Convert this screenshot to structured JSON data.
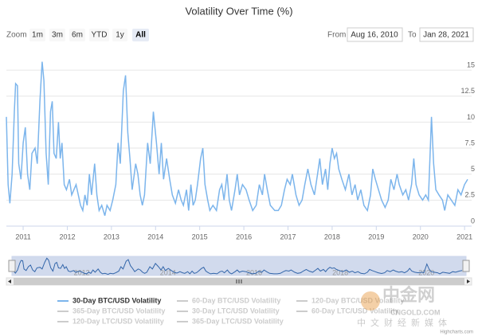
{
  "chart_data": {
    "type": "line",
    "title": "Volatility Over Time (%)",
    "range_selector": {
      "label": "Zoom",
      "buttons": [
        "1m",
        "3m",
        "6m",
        "YTD",
        "1y",
        "All"
      ],
      "selected": "All"
    },
    "from_label": "From",
    "from": "Aug 16, 2010",
    "to_label": "To",
    "to": "Jan 28, 2021",
    "x": [
      2010.62,
      2010.66,
      2010.7,
      2010.75,
      2010.8,
      2010.83,
      2010.87,
      2010.9,
      2010.95,
      2011.0,
      2011.05,
      2011.1,
      2011.15,
      2011.2,
      2011.27,
      2011.32,
      2011.38,
      2011.43,
      2011.47,
      2011.52,
      2011.57,
      2011.62,
      2011.66,
      2011.7,
      2011.75,
      2011.8,
      2011.84,
      2011.88,
      2011.93,
      2011.98,
      2012.05,
      2012.1,
      2012.2,
      2012.3,
      2012.35,
      2012.4,
      2012.45,
      2012.5,
      2012.55,
      2012.62,
      2012.67,
      2012.72,
      2012.78,
      2012.85,
      2012.9,
      2012.97,
      2013.03,
      2013.1,
      2013.15,
      2013.2,
      2013.27,
      2013.32,
      2013.37,
      2013.42,
      2013.47,
      2013.55,
      2013.6,
      2013.65,
      2013.7,
      2013.75,
      2013.82,
      2013.88,
      2013.95,
      2014.02,
      2014.08,
      2014.13,
      2014.18,
      2014.25,
      2014.32,
      2014.38,
      2014.45,
      2014.52,
      2014.58,
      2014.63,
      2014.7,
      2014.75,
      2014.8,
      2014.85,
      2014.9,
      2014.95,
      2015.02,
      2015.07,
      2015.12,
      2015.18,
      2015.23,
      2015.3,
      2015.38,
      2015.45,
      2015.5,
      2015.55,
      2015.62,
      2015.67,
      2015.72,
      2015.8,
      2015.85,
      2015.9,
      2015.97,
      2016.05,
      2016.12,
      2016.2,
      2016.28,
      2016.35,
      2016.42,
      2016.47,
      2016.53,
      2016.6,
      2016.7,
      2016.78,
      2016.85,
      2016.92,
      2016.98,
      2017.05,
      2017.1,
      2017.18,
      2017.25,
      2017.32,
      2017.38,
      2017.45,
      2017.52,
      2017.6,
      2017.67,
      2017.72,
      2017.78,
      2017.85,
      2017.9,
      2017.95,
      2018.0,
      2018.05,
      2018.1,
      2018.15,
      2018.22,
      2018.3,
      2018.38,
      2018.45,
      2018.52,
      2018.58,
      2018.65,
      2018.72,
      2018.8,
      2018.87,
      2018.92,
      2018.98,
      2019.05,
      2019.12,
      2019.2,
      2019.27,
      2019.33,
      2019.4,
      2019.47,
      2019.52,
      2019.6,
      2019.67,
      2019.73,
      2019.8,
      2019.85,
      2019.9,
      2019.97,
      2020.05,
      2020.12,
      2020.18,
      2020.22,
      2020.25,
      2020.3,
      2020.35,
      2020.42,
      2020.5,
      2020.55,
      2020.62,
      2020.7,
      2020.78,
      2020.85,
      2020.92,
      2021.0,
      2021.07
    ],
    "series": [
      {
        "name": "30-Day BTC/USD Volatility",
        "color": "#7cb5ec",
        "values": [
          10.5,
          4,
          2.2,
          5,
          11,
          13.7,
          13.5,
          6,
          4.5,
          8,
          9.5,
          5,
          3.5,
          7,
          7.5,
          6,
          12,
          15.8,
          14,
          7,
          4,
          11,
          12,
          7,
          6.5,
          10,
          6.5,
          8,
          4,
          3.5,
          4.5,
          3,
          4,
          2,
          1.5,
          3,
          2,
          5,
          3,
          6,
          3,
          1.5,
          2,
          1,
          2,
          1.5,
          2.5,
          4,
          8,
          6,
          13,
          14.5,
          9,
          6.5,
          3.5,
          6,
          5,
          3,
          2,
          3,
          8,
          6,
          11,
          8,
          5,
          8,
          4.5,
          6.5,
          4.5,
          3,
          2.2,
          3.5,
          2.5,
          2,
          3.5,
          1.5,
          4,
          2,
          2.5,
          4,
          6.5,
          7.5,
          4,
          2.5,
          1.5,
          2,
          1.5,
          3.5,
          4,
          2.5,
          5,
          2.5,
          1.5,
          3.5,
          5,
          3,
          4,
          3.5,
          2.5,
          1.5,
          2,
          4,
          3,
          5,
          3.5,
          2,
          1.5,
          1.5,
          2,
          3.5,
          4.5,
          4,
          5,
          3,
          2,
          2.5,
          4,
          5.5,
          4,
          3,
          5,
          6.5,
          4,
          5.5,
          3.5,
          6,
          7.5,
          6.5,
          7,
          5.5,
          4.5,
          3.5,
          5,
          3,
          4,
          2.5,
          3.5,
          2,
          1.5,
          3,
          5.5,
          4.5,
          3.5,
          2.5,
          1.8,
          2.5,
          4.5,
          3.5,
          5,
          4,
          3,
          3.5,
          2.5,
          4,
          6.5,
          4,
          3,
          2.5,
          3,
          2.5,
          7,
          10.5,
          6,
          3.5,
          3,
          2.5,
          1.5,
          3,
          2.5,
          2,
          3.5,
          3,
          4,
          4.5
        ]
      }
    ],
    "hidden_series": [
      {
        "name": "60-Day BTC/USD Volatility"
      },
      {
        "name": "120-Day BTC/USD Volatility"
      },
      {
        "name": "365-Day BTC/USD Volatility"
      },
      {
        "name": "30-Day LTC/USD Volatility"
      },
      {
        "name": "60-Day LTC/USD Volatility"
      },
      {
        "name": "120-Day LTC/USD Volatility"
      },
      {
        "name": "365-Day LTC/USD Volatility"
      }
    ],
    "xlim": [
      2010.62,
      2021.16
    ],
    "xticks": [
      2011,
      2012,
      2013,
      2014,
      2015,
      2016,
      2017,
      2018,
      2019,
      2020,
      2021
    ],
    "ylim": [
      0,
      16
    ],
    "yticks": [
      0,
      2.5,
      5,
      7.5,
      10,
      12.5,
      15
    ],
    "grid": true,
    "credits": "Highcharts.com",
    "watermark": [
      "中金网",
      "CNGOLD.COM",
      "中文财经新媒体"
    ]
  }
}
